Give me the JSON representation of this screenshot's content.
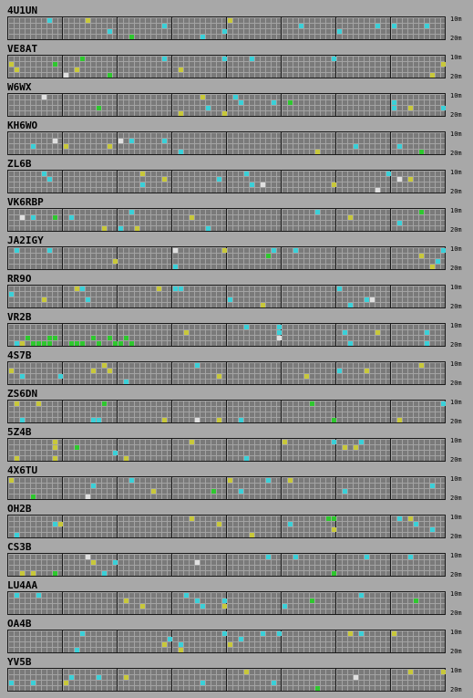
{
  "board": {
    "band_top_label": "10m",
    "band_bottom_label": "20m",
    "colors": {
      "background": "#a8a8a8",
      "grid": "#7a7a7a",
      "cyan": "#3ad0d8",
      "yellow": "#c8c83a",
      "green": "#2ec82e",
      "white": "#e0e0e0"
    }
  },
  "beacons": [
    {
      "callsign": "4U1UN"
    },
    {
      "callsign": "VE8AT"
    },
    {
      "callsign": "W6WX"
    },
    {
      "callsign": "KH6WO"
    },
    {
      "callsign": "ZL6B"
    },
    {
      "callsign": "VK6RBP"
    },
    {
      "callsign": "JA2IGY"
    },
    {
      "callsign": "RR9O"
    },
    {
      "callsign": "VR2B"
    },
    {
      "callsign": "4S7B"
    },
    {
      "callsign": "ZS6DN"
    },
    {
      "callsign": "5Z4B"
    },
    {
      "callsign": "4X6TU"
    },
    {
      "callsign": "OH2B"
    },
    {
      "callsign": "CS3B"
    },
    {
      "callsign": "LU4AA"
    },
    {
      "callsign": "OA4B"
    },
    {
      "callsign": "YV5B"
    }
  ]
}
